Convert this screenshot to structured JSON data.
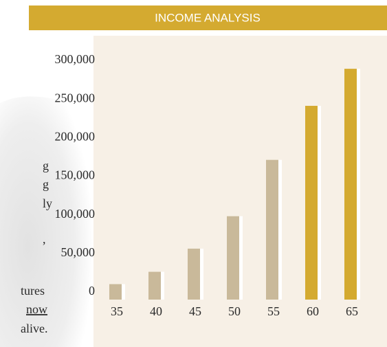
{
  "side_text": [
    "g",
    "g",
    "ly",
    ",",
    "tures",
    "now",
    "alive."
  ],
  "chart_data": {
    "type": "bar",
    "title": "INCOME ANALYSIS",
    "categories": [
      "35",
      "40",
      "45",
      "50",
      "55",
      "60",
      "65"
    ],
    "values": [
      12000,
      28000,
      58000,
      100000,
      173000,
      243000,
      291000
    ],
    "colors": [
      "#c9b99a",
      "#c9b99a",
      "#c9b99a",
      "#c9b99a",
      "#c9b99a",
      "#d4aa30",
      "#d4aa30"
    ],
    "ylim": [
      0,
      300000
    ],
    "yticks": [
      {
        "value": 0,
        "label": "0"
      },
      {
        "value": 50000,
        "label": "50,000"
      },
      {
        "value": 100000,
        "label": "100,000"
      },
      {
        "value": 150000,
        "label": "150,000"
      },
      {
        "value": 200000,
        "label": "200,000"
      },
      {
        "value": 250000,
        "label": "250,000"
      },
      {
        "value": 300000,
        "label": "300,000"
      }
    ]
  }
}
